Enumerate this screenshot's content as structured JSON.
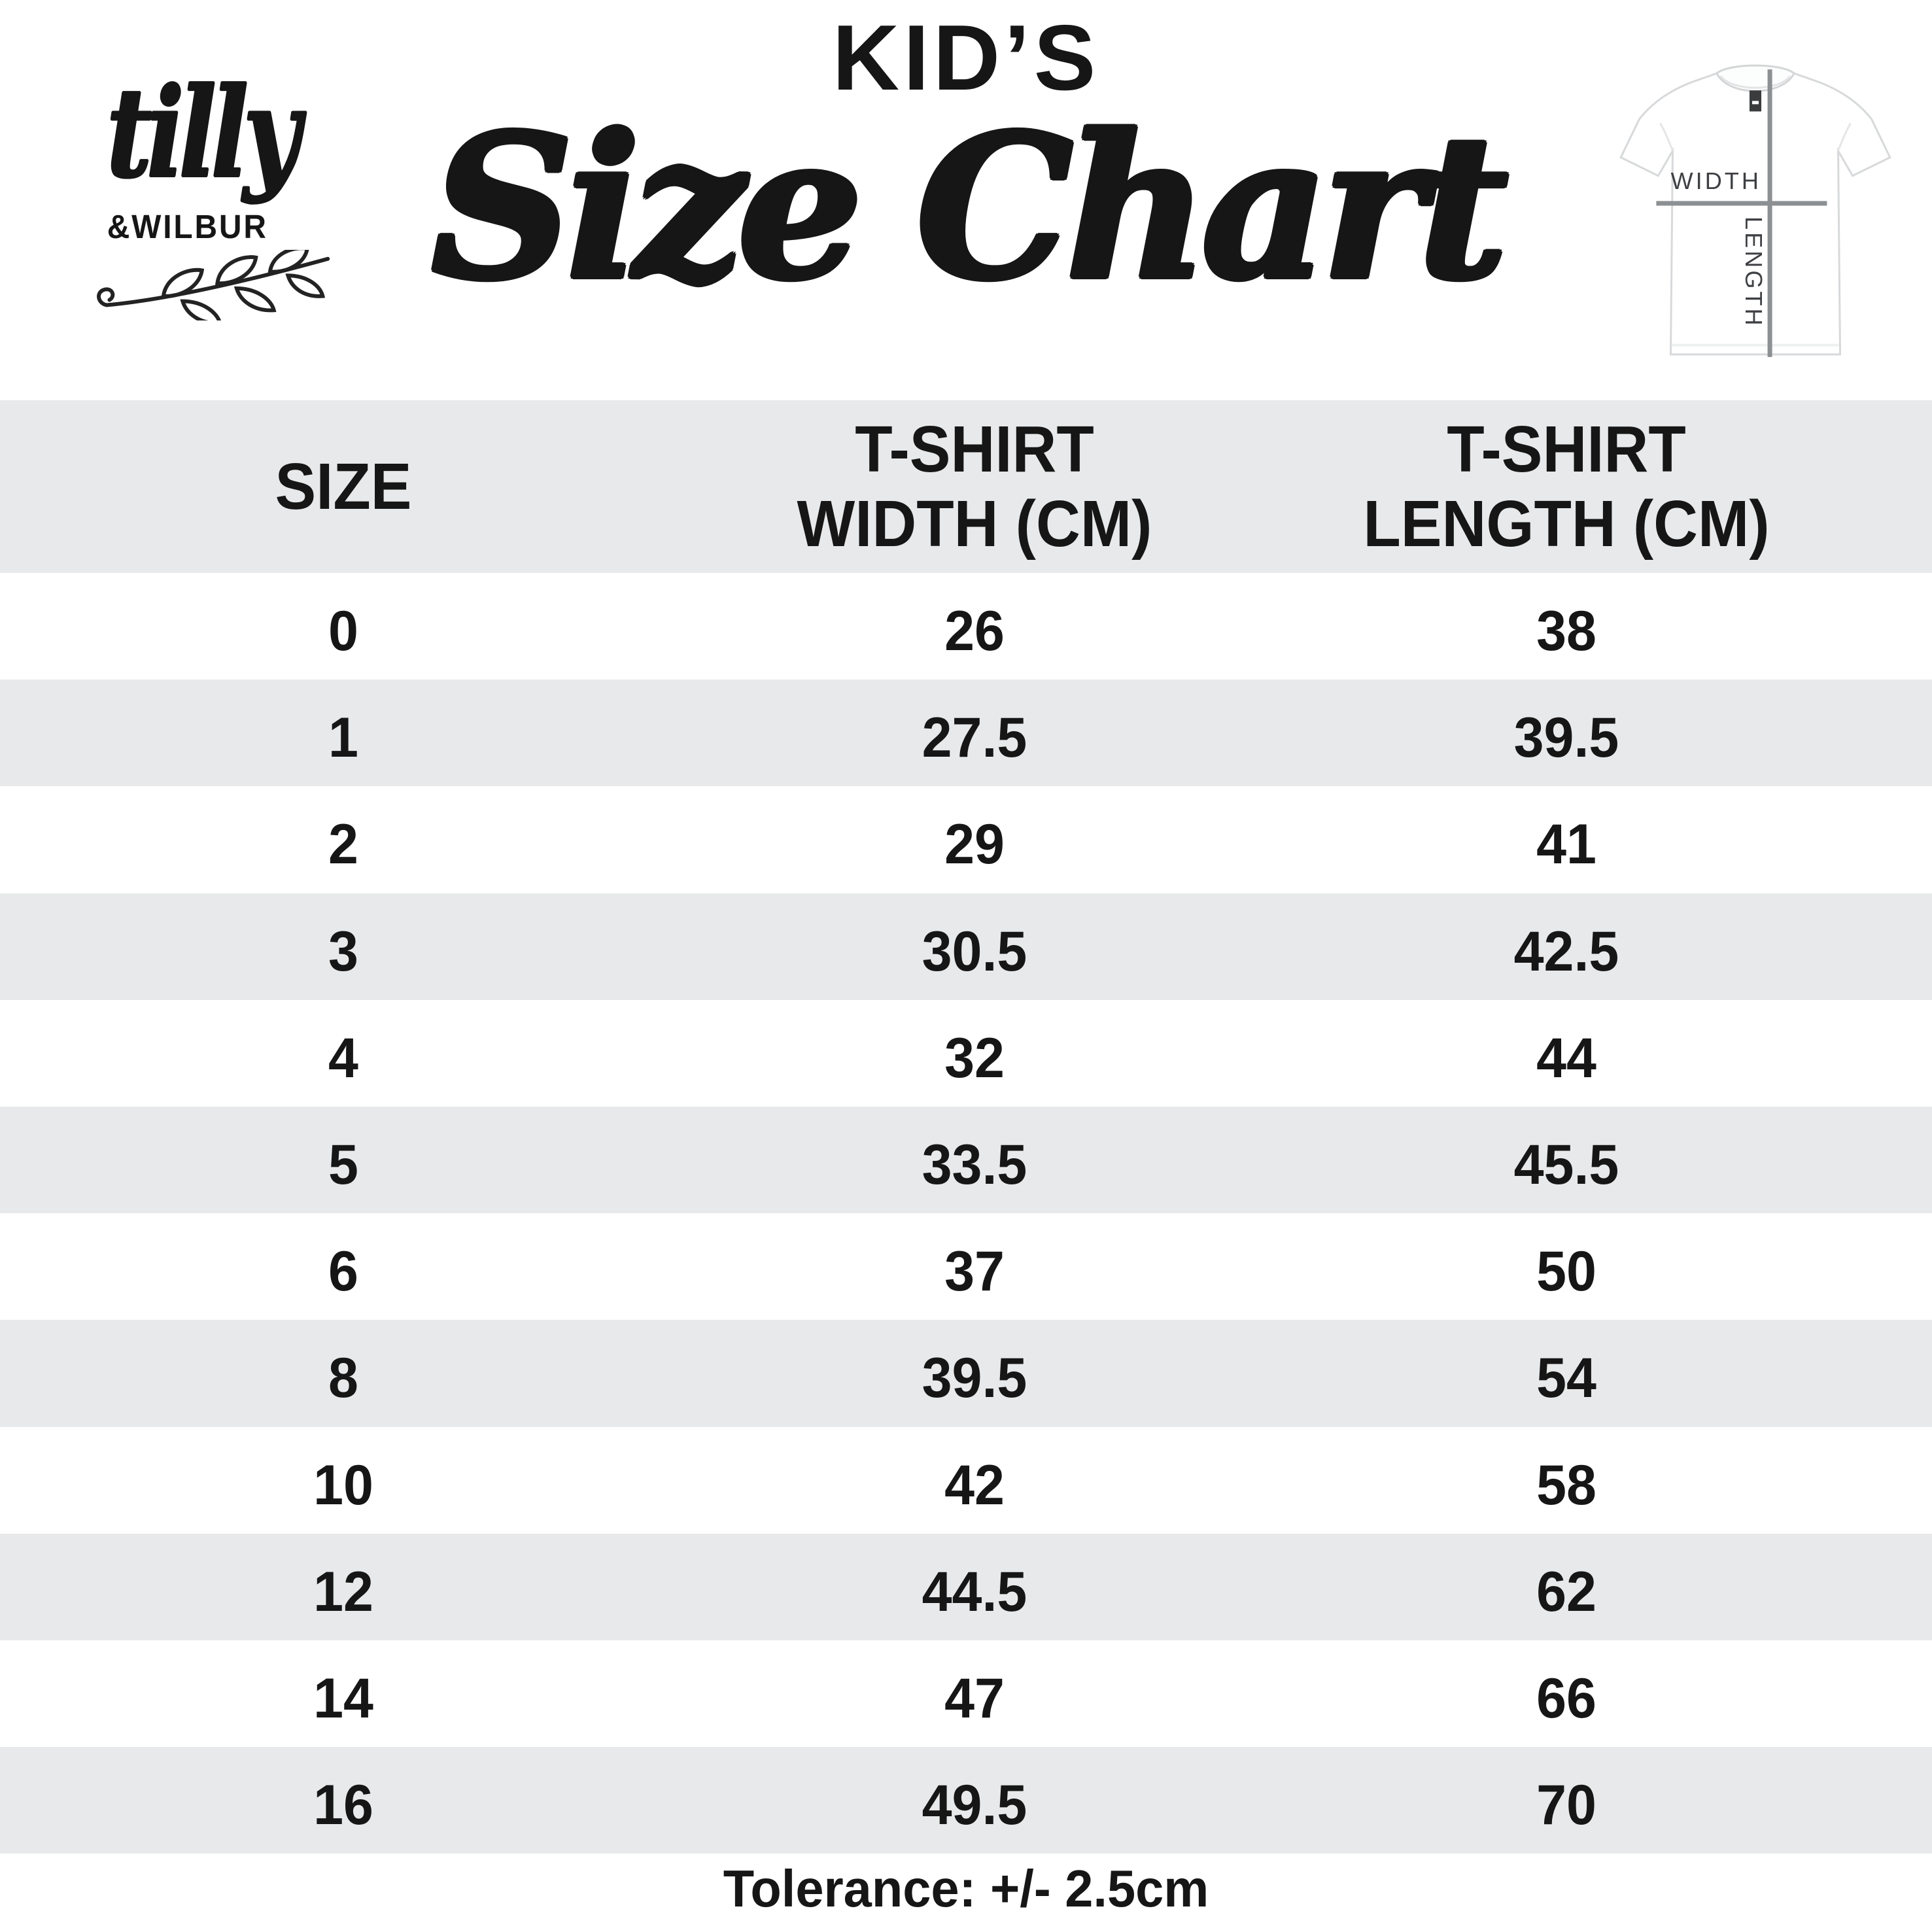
{
  "brand": {
    "script_name": "tilly",
    "caps_name": "&WILBUR"
  },
  "title": {
    "kicker": "KID’S",
    "main": "Size Chart"
  },
  "tshirt_diagram": {
    "width_label": "WIDTH",
    "length_label": "LENGTH"
  },
  "table": {
    "header_size": "SIZE",
    "header_width_l1": "T-SHIRT",
    "header_width_l2": "WIDTH (CM)",
    "header_length_l1": "T-SHIRT",
    "header_length_l2": "LENGTH (CM)",
    "rows": [
      [
        "0",
        "26",
        "38"
      ],
      [
        "1",
        "27.5",
        "39.5"
      ],
      [
        "2",
        "29",
        "41"
      ],
      [
        "3",
        "30.5",
        "42.5"
      ],
      [
        "4",
        "32",
        "44"
      ],
      [
        "5",
        "33.5",
        "45.5"
      ],
      [
        "6",
        "37",
        "50"
      ],
      [
        "8",
        "39.5",
        "54"
      ],
      [
        "10",
        "42",
        "58"
      ],
      [
        "12",
        "44.5",
        "62"
      ],
      [
        "14",
        "47",
        "66"
      ],
      [
        "16",
        "49.5",
        "70"
      ]
    ]
  },
  "footer": {
    "tolerance": "Tolerance: +/- 2.5cm"
  },
  "colors": {
    "row_alt": "#e8e9ea",
    "text": "#161616",
    "diagram_line": "#8d9092"
  },
  "chart_data": {
    "type": "table",
    "title": "KID’S Size Chart",
    "columns": [
      "SIZE",
      "T-SHIRT WIDTH (CM)",
      "T-SHIRT LENGTH (CM)"
    ],
    "rows": [
      [
        0,
        26,
        38
      ],
      [
        1,
        27.5,
        39.5
      ],
      [
        2,
        29,
        41
      ],
      [
        3,
        30.5,
        42.5
      ],
      [
        4,
        32,
        44
      ],
      [
        5,
        33.5,
        45.5
      ],
      [
        6,
        37,
        50
      ],
      [
        8,
        39.5,
        54
      ],
      [
        10,
        42,
        58
      ],
      [
        12,
        44.5,
        62
      ],
      [
        14,
        47,
        66
      ],
      [
        16,
        49.5,
        70
      ]
    ],
    "note": "Tolerance: +/- 2.5cm",
    "layout_hints": {
      "striped_rows": true,
      "header_background": "#e8e9ea",
      "grid": false
    }
  }
}
